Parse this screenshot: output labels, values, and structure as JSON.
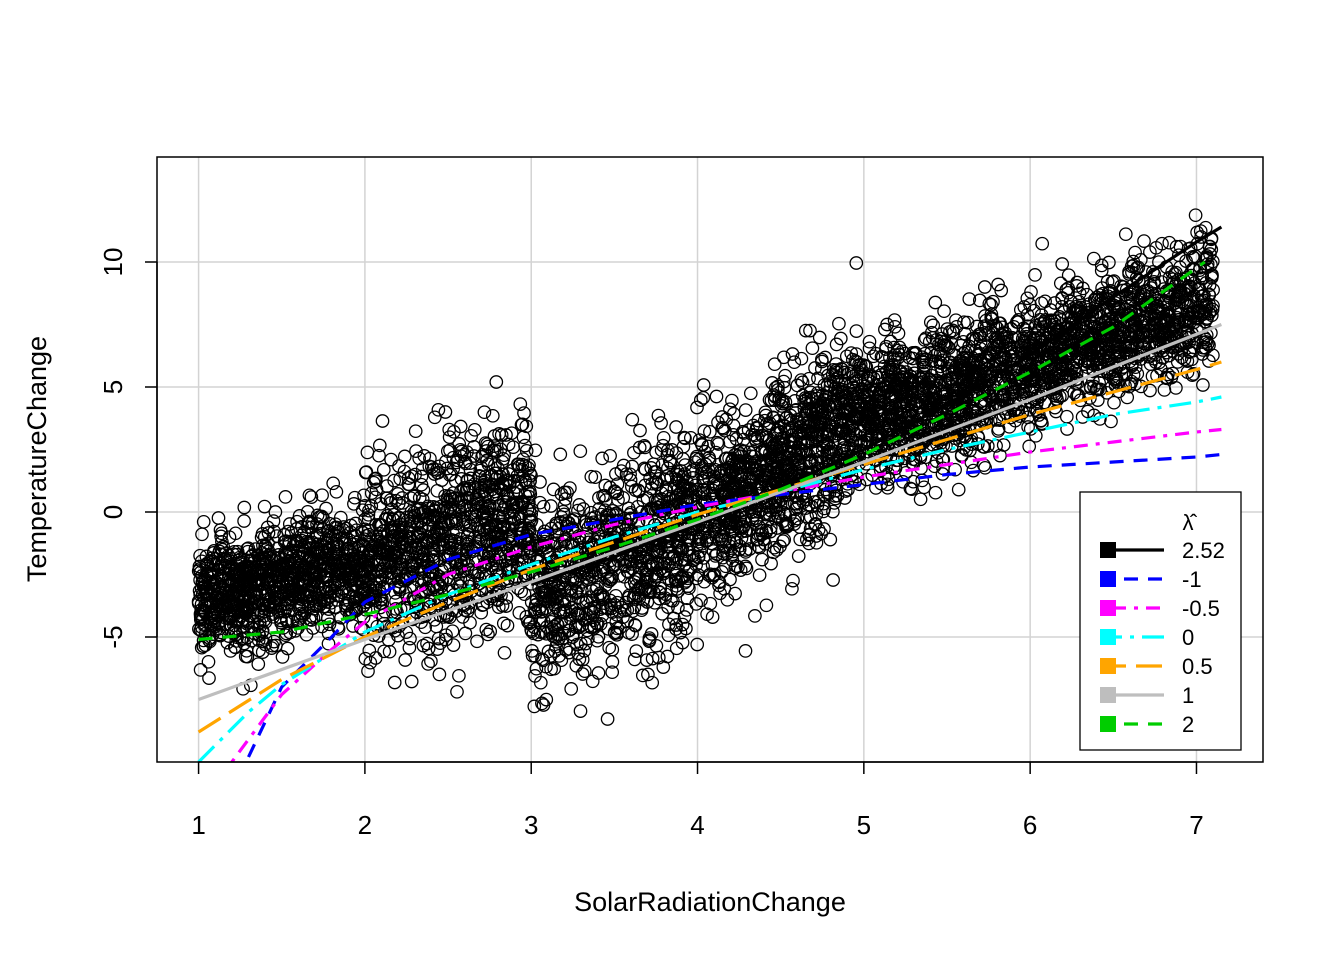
{
  "chart_data": {
    "type": "scatter",
    "xlabel": "SolarRadiationChange",
    "ylabel": "TemperatureChange",
    "xlim": [
      0.75,
      7.4
    ],
    "ylim": [
      -10.0,
      14.2
    ],
    "x_ticks": [
      1,
      2,
      3,
      4,
      5,
      6,
      7
    ],
    "y_ticks": [
      -5,
      0,
      5,
      10
    ],
    "grid": true,
    "point_style": "open-circle",
    "point_count_approx": 6000,
    "scatter_clusters": [
      {
        "x_range": [
          1.0,
          2.0
        ],
        "y_center_from": -3.5,
        "y_center_to": -2.0,
        "y_spread": 2.2
      },
      {
        "x_range": [
          2.0,
          3.0
        ],
        "y_center_from": -2.0,
        "y_center_to": 0.0,
        "y_spread": 3.5
      },
      {
        "x_range": [
          3.0,
          4.1
        ],
        "y_center_from": -3.5,
        "y_center_to": 0.0,
        "y_spread": 3.5
      },
      {
        "x_range": [
          4.1,
          5.0
        ],
        "y_center_from": 0.0,
        "y_center_to": 4.0,
        "y_spread": 3.0
      },
      {
        "x_range": [
          5.0,
          6.0
        ],
        "y_center_from": 3.5,
        "y_center_to": 6.0,
        "y_spread": 2.5
      },
      {
        "x_range": [
          6.0,
          7.1
        ],
        "y_center_from": 6.0,
        "y_center_to": 8.5,
        "y_spread": 2.3
      }
    ],
    "legend": {
      "title": "λ̂",
      "placement": "bottom-right"
    },
    "series": [
      {
        "name": "2.52",
        "color": "#000000",
        "style": "solid",
        "x": [
          3.0,
          3.5,
          4.0,
          4.5,
          5.0,
          5.5,
          6.0,
          6.5,
          7.0,
          7.15
        ],
        "y": [
          -2.9,
          -1.8,
          -0.5,
          1.0,
          2.5,
          4.3,
          6.3,
          8.6,
          10.8,
          11.4
        ]
      },
      {
        "name": "-1",
        "color": "#0000ff",
        "style": "dashed",
        "x": [
          1.3,
          1.5,
          1.8,
          2.0,
          2.5,
          3.0,
          3.5,
          4.0,
          4.5,
          5.0,
          5.5,
          6.0,
          6.5,
          7.0,
          7.15
        ],
        "y": [
          -9.8,
          -7.0,
          -5.0,
          -3.6,
          -1.9,
          -0.9,
          -0.3,
          0.3,
          0.7,
          1.1,
          1.5,
          1.8,
          2.0,
          2.2,
          2.3
        ]
      },
      {
        "name": "-0.5",
        "color": "#ff00ff",
        "style": "dashdot",
        "x": [
          1.2,
          1.5,
          1.8,
          2.0,
          2.5,
          3.0,
          3.5,
          4.0,
          4.5,
          5.0,
          5.5,
          6.0,
          6.5,
          7.0,
          7.15
        ],
        "y": [
          -10.0,
          -7.3,
          -5.5,
          -4.4,
          -2.5,
          -1.4,
          -0.5,
          0.2,
          0.8,
          1.4,
          1.9,
          2.4,
          2.8,
          3.2,
          3.3
        ]
      },
      {
        "name": "0",
        "color": "#00ffff",
        "style": "longdashdot",
        "x": [
          1.0,
          1.3,
          1.5,
          2.0,
          2.5,
          3.0,
          3.5,
          4.0,
          4.5,
          5.0,
          5.5,
          6.0,
          6.5,
          7.0,
          7.15
        ],
        "y": [
          -10.0,
          -8.0,
          -6.9,
          -4.8,
          -3.3,
          -2.1,
          -1.0,
          0.0,
          0.8,
          1.7,
          2.5,
          3.2,
          3.9,
          4.4,
          4.6
        ]
      },
      {
        "name": "0.5",
        "color": "#ffa500",
        "style": "longdash",
        "x": [
          1.0,
          1.5,
          2.0,
          2.5,
          3.0,
          3.5,
          4.0,
          4.5,
          5.0,
          5.5,
          6.0,
          6.5,
          7.0,
          7.15
        ],
        "y": [
          -8.8,
          -6.7,
          -5.0,
          -3.6,
          -2.3,
          -1.2,
          -0.1,
          0.9,
          1.9,
          2.9,
          3.9,
          4.8,
          5.7,
          6.0
        ]
      },
      {
        "name": "1",
        "color": "#bebebe",
        "style": "solid",
        "x": [
          1.0,
          2.0,
          3.0,
          4.0,
          5.0,
          6.0,
          7.15
        ],
        "y": [
          -7.5,
          -5.1,
          -2.8,
          -0.4,
          2.0,
          4.5,
          7.5
        ]
      },
      {
        "name": "2",
        "color": "#00cd00",
        "style": "dashed",
        "x": [
          1.0,
          1.5,
          2.0,
          2.5,
          3.0,
          3.5,
          4.0,
          4.5,
          5.0,
          5.5,
          6.0,
          6.5,
          7.05
        ],
        "y": [
          -5.1,
          -4.8,
          -4.1,
          -3.3,
          -2.4,
          -1.4,
          -0.3,
          0.9,
          2.3,
          3.9,
          5.6,
          7.4,
          10.0
        ]
      }
    ]
  }
}
